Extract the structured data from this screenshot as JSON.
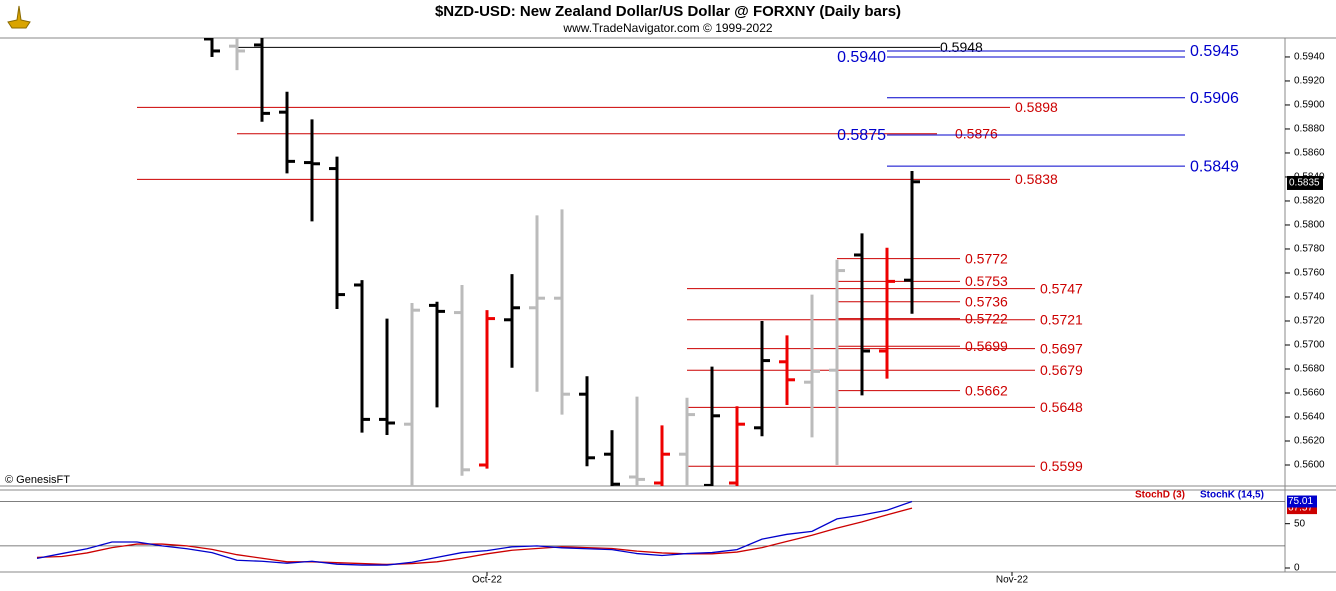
{
  "chart_data": {
    "type": "ohlc",
    "title": "$NZD-USD:  New Zealand Dollar/US Dollar @ FORXNY  (Daily bars)",
    "subtitle": "www.TradeNavigator.com © 1999-2022",
    "source": "© GenesisFT",
    "categories": [
      null,
      null,
      null,
      null,
      null,
      null,
      null,
      null,
      null,
      null,
      null,
      null,
      null,
      null,
      null,
      null,
      null,
      null,
      "Oct-22",
      null,
      null,
      null,
      null,
      null,
      null,
      null,
      null,
      null,
      null,
      null,
      null,
      null,
      null,
      null,
      null,
      null,
      null,
      null,
      null,
      "Nov-22"
    ],
    "open": [
      null,
      null,
      null,
      null,
      null,
      null,
      null,
      0.5955,
      0.5949,
      0.595,
      0.5894,
      0.5852,
      0.5847,
      0.575,
      0.5638,
      0.5634,
      0.5733,
      0.5727,
      0.56,
      0.5721,
      0.5731,
      0.5739,
      0.5659,
      0.5609,
      0.559,
      0.5585,
      0.5609,
      0.5583,
      0.5585,
      0.5631,
      0.5686,
      0.5669,
      0.5679,
      0.5775,
      0.5695,
      0.5754,
      null,
      null,
      null,
      null
    ],
    "high": [
      null,
      null,
      null,
      null,
      null,
      null,
      null,
      0.5962,
      0.596,
      0.596,
      0.5911,
      0.5888,
      0.5857,
      0.5754,
      0.5722,
      0.5735,
      0.5736,
      0.575,
      0.5729,
      0.5759,
      0.5808,
      0.5813,
      0.5674,
      0.5629,
      0.5657,
      0.5633,
      0.5656,
      0.5682,
      0.5649,
      0.572,
      0.5708,
      0.5742,
      0.5771,
      0.5793,
      0.5781,
      0.5845,
      null,
      null,
      null,
      null
    ],
    "low": [
      null,
      null,
      null,
      null,
      null,
      null,
      null,
      0.594,
      0.5929,
      0.5886,
      0.5843,
      0.5803,
      0.573,
      0.5627,
      0.5625,
      0.558,
      0.5648,
      0.5591,
      0.5597,
      0.5681,
      0.5661,
      0.5642,
      0.5599,
      0.5578,
      0.5575,
      0.5578,
      0.5575,
      0.5575,
      0.5575,
      0.5624,
      0.565,
      0.5623,
      0.56,
      0.5658,
      0.5672,
      0.5726,
      null,
      null,
      null,
      null
    ],
    "close": [
      null,
      null,
      null,
      null,
      null,
      null,
      null,
      0.5945,
      0.5945,
      0.5893,
      0.5853,
      0.5851,
      0.5742,
      0.5638,
      0.5635,
      0.5729,
      0.5728,
      0.5596,
      0.5722,
      0.5731,
      0.5739,
      0.5659,
      0.5606,
      0.5584,
      0.5588,
      0.5609,
      0.5642,
      0.5641,
      0.5634,
      0.5687,
      0.5671,
      0.5678,
      0.5762,
      0.5695,
      0.5753,
      0.5836,
      null,
      null,
      null,
      null
    ],
    "colors": [
      null,
      null,
      null,
      null,
      null,
      null,
      null,
      "#000000",
      "#bbbbbb",
      "#000000",
      "#000000",
      "#000000",
      "#000000",
      "#000000",
      "#000000",
      "#bbbbbb",
      "#000000",
      "#bbbbbb",
      "#ee0000",
      "#000000",
      "#bbbbbb",
      "#bbbbbb",
      "#000000",
      "#000000",
      "#bbbbbb",
      "#ee0000",
      "#bbbbbb",
      "#000000",
      "#ee0000",
      "#000000",
      "#ee0000",
      "#bbbbbb",
      "#bbbbbb",
      "#000000",
      "#ee0000",
      "#000000",
      null,
      null,
      null,
      null
    ],
    "ylim": [
      0.55825,
      0.59558
    ],
    "yticks": [
      {
        "value": 0.56,
        "label": "0.5600"
      },
      {
        "value": 0.562,
        "label": "0.5620"
      },
      {
        "value": 0.564,
        "label": "0.5640"
      },
      {
        "value": 0.566,
        "label": "0.5660"
      },
      {
        "value": 0.568,
        "label": "0.5680"
      },
      {
        "value": 0.57,
        "label": "0.5700"
      },
      {
        "value": 0.572,
        "label": "0.5720"
      },
      {
        "value": 0.574,
        "label": "0.5740"
      },
      {
        "value": 0.576,
        "label": "0.5760"
      },
      {
        "value": 0.578,
        "label": "0.5780"
      },
      {
        "value": 0.58,
        "label": "0.5800"
      },
      {
        "value": 0.582,
        "label": "0.5820"
      },
      {
        "value": 0.584,
        "label": "0.5840"
      },
      {
        "value": 0.586,
        "label": "0.5860"
      },
      {
        "value": 0.588,
        "label": "0.5880"
      },
      {
        "value": 0.59,
        "label": "0.5900"
      },
      {
        "value": 0.592,
        "label": "0.5920"
      },
      {
        "value": 0.594,
        "label": "0.5940"
      }
    ],
    "last": {
      "value": 0.5835,
      "label": "0.5835"
    },
    "levels": [
      {
        "value": 0.5948,
        "label": "0.5948",
        "color": "#000000"
      },
      {
        "value": 0.5945,
        "label": "0.5945",
        "color": "#0000cc"
      },
      {
        "value": 0.594,
        "label": "0.5940",
        "color": "#0000cc"
      },
      {
        "value": 0.5906,
        "label": "0.5906",
        "color": "#0000cc"
      },
      {
        "value": 0.5898,
        "label": "0.5898",
        "color": "#cc0000"
      },
      {
        "value": 0.5876,
        "label": "0.5876",
        "color": "#cc0000"
      },
      {
        "value": 0.5875,
        "label": "0.5875",
        "color": "#0000cc"
      },
      {
        "value": 0.5849,
        "label": "0.5849",
        "color": "#0000cc"
      },
      {
        "value": 0.5838,
        "label": "0.5838",
        "color": "#cc0000"
      },
      {
        "value": 0.5772,
        "label": "0.5772",
        "color": "#cc0000"
      },
      {
        "value": 0.5753,
        "label": "0.5753",
        "color": "#cc0000"
      },
      {
        "value": 0.5747,
        "label": "0.5747",
        "color": "#cc0000"
      },
      {
        "value": 0.5736,
        "label": "0.5736",
        "color": "#cc0000"
      },
      {
        "value": 0.5722,
        "label": "0.5722",
        "color": "#cc0000"
      },
      {
        "value": 0.5721,
        "label": "0.5721",
        "color": "#cc0000"
      },
      {
        "value": 0.5699,
        "label": "0.5699",
        "color": "#cc0000"
      },
      {
        "value": 0.5697,
        "label": "0.5697",
        "color": "#cc0000"
      },
      {
        "value": 0.5679,
        "label": "0.5679",
        "color": "#cc0000"
      },
      {
        "value": 0.5662,
        "label": "0.5662",
        "color": "#cc0000"
      },
      {
        "value": 0.5648,
        "label": "0.5648",
        "color": "#cc0000"
      },
      {
        "value": 0.5599,
        "label": "0.5599",
        "color": "#cc0000"
      }
    ],
    "indicator": {
      "type": "line",
      "ylim": [
        0,
        88
      ],
      "yticks": [
        0,
        50
      ],
      "hlines": [
        25,
        75
      ],
      "series": [
        {
          "name": "StochD (3)",
          "color": "#cc0000",
          "values": [
            12,
            13,
            17,
            23,
            27,
            27,
            25,
            21,
            15,
            11,
            7,
            7,
            6,
            5,
            4,
            5,
            7,
            11,
            16,
            20,
            22,
            24,
            23,
            22,
            19,
            17,
            16,
            16,
            18,
            23,
            30,
            37,
            45,
            52,
            60,
            67.57,
            null,
            null,
            null,
            null
          ],
          "value_labels": [
            null,
            null,
            null,
            null,
            null,
            null,
            null,
            null,
            null,
            null,
            null,
            null,
            null,
            null,
            null,
            null,
            null,
            null,
            null,
            null,
            null,
            null,
            null,
            null,
            null,
            null,
            null,
            null,
            null,
            null,
            null,
            null,
            null,
            null,
            null,
            "67.57",
            null,
            null,
            null,
            null
          ]
        },
        {
          "name": "StochK (14,5)",
          "color": "#0000cc",
          "values": [
            10.9,
            16.3,
            21.7,
            29.3,
            29.3,
            25,
            21.7,
            17.4,
            8.7,
            7.6,
            5.4,
            7.6,
            4.3,
            3.3,
            3.3,
            6.5,
            12,
            17.4,
            19.6,
            23.9,
            25,
            22.8,
            21.7,
            20.7,
            16.3,
            14.1,
            16.3,
            17.4,
            20.7,
            32.6,
            38,
            41.3,
            55.4,
            59.8,
            65.2,
            75.01,
            null,
            null,
            null,
            null
          ],
          "value_labels": [
            null,
            null,
            null,
            null,
            null,
            null,
            null,
            null,
            null,
            null,
            null,
            null,
            null,
            null,
            null,
            null,
            null,
            null,
            null,
            null,
            null,
            null,
            null,
            null,
            null,
            null,
            null,
            null,
            null,
            null,
            null,
            null,
            null,
            null,
            null,
            "75.01",
            null,
            null,
            null,
            null
          ]
        }
      ]
    }
  }
}
